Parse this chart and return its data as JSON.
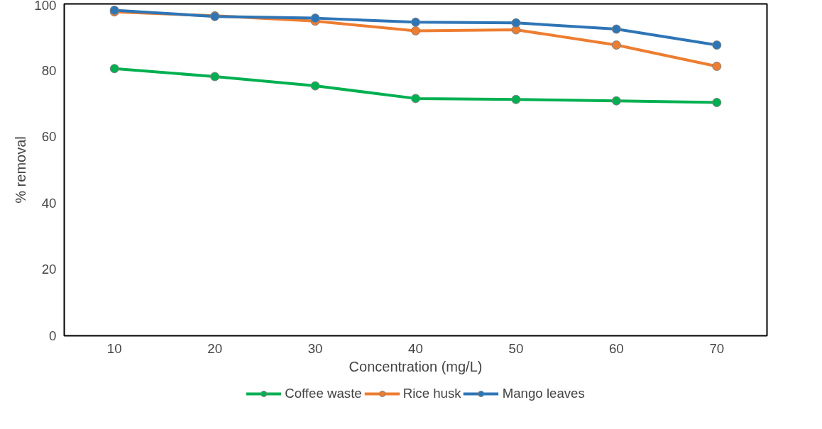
{
  "chart_data": {
    "type": "line",
    "xlabel": "Concentration (mg/L)",
    "ylabel": "% removal",
    "categories": [
      "10",
      "20",
      "30",
      "40",
      "50",
      "60",
      "70"
    ],
    "series": [
      {
        "name": "Coffee waste",
        "color": "#00b050",
        "values": [
          80.5,
          78.1,
          75.3,
          71.5,
          71.2,
          70.8,
          70.3
        ]
      },
      {
        "name": "Rice husk",
        "color": "#ed7d31",
        "values": [
          97.6,
          96.4,
          94.8,
          91.9,
          92.2,
          87.6,
          81.2
        ]
      },
      {
        "name": "Mango leaves",
        "color": "#2e75b6",
        "values": [
          98.1,
          96.2,
          95.7,
          94.5,
          94.3,
          92.4,
          87.6
        ]
      }
    ],
    "ylim": [
      0,
      100
    ],
    "yticks": [
      0,
      20,
      40,
      60,
      80,
      100
    ],
    "grid": false,
    "legend": "bottom",
    "marker": "circle",
    "line_style": "solid"
  }
}
